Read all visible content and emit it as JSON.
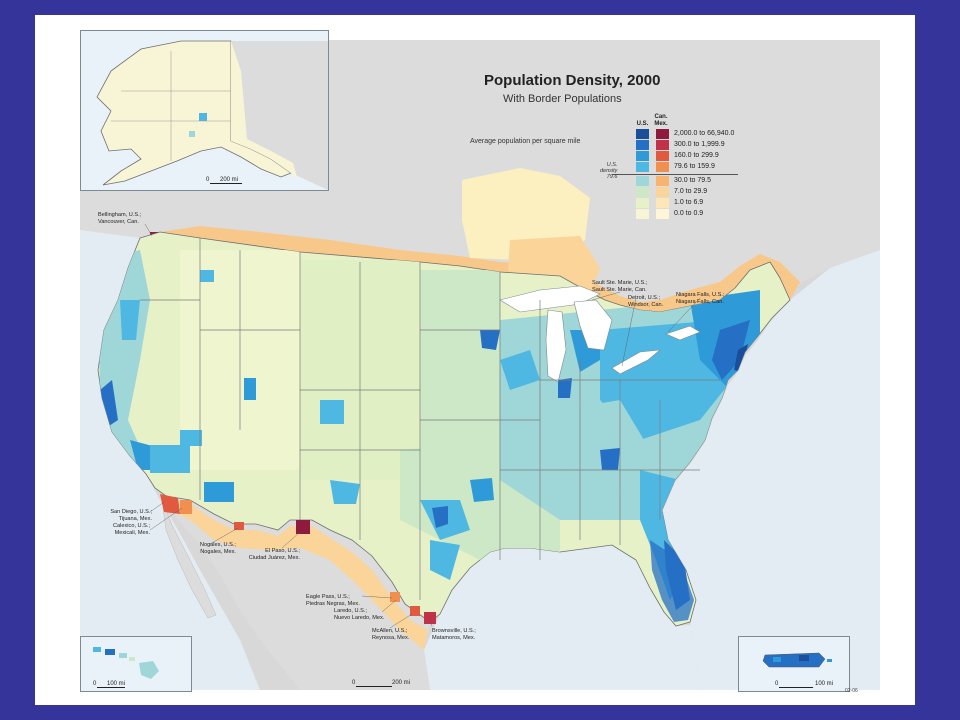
{
  "map": {
    "title": "Population Density, 2000",
    "subtitle": "With Border Populations",
    "legend": {
      "caption": "Average population per square mile",
      "us_header": "U.S.",
      "canmex_header_line1": "Can.",
      "canmex_header_line2": "Mex.",
      "us_density_line1": "U.S.",
      "us_density_line2": "density",
      "us_density_line3": "79.6",
      "classes": [
        {
          "label": "2,000.0 to 66,940.0",
          "us_color": "#1a4e9a",
          "canmex_color": "#8e1b3e"
        },
        {
          "label": "300.0 to 1,999.9",
          "us_color": "#2570c4",
          "canmex_color": "#c0314a"
        },
        {
          "label": "160.0 to 299.9",
          "us_color": "#2f9ad8",
          "canmex_color": "#e05a3f"
        },
        {
          "label": "79.6 to 159.9",
          "us_color": "#4fb8e2",
          "canmex_color": "#f08f50"
        },
        {
          "label": "30.0 to 79.5",
          "us_color": "#9fd6d8",
          "canmex_color": "#f7b470"
        },
        {
          "label": "7.0 to 29.9",
          "us_color": "#cde8c6",
          "canmex_color": "#fbd49a"
        },
        {
          "label": "1.0 to 6.9",
          "us_color": "#e6f1c8",
          "canmex_color": "#fde6b8"
        },
        {
          "label": "0.0 to 0.9",
          "us_color": "#f7f5d6",
          "canmex_color": "#fff6d8"
        }
      ]
    },
    "border_pairs": [
      {
        "line1": "Bellingham, U.S.;",
        "line2": "Vancouver, Can."
      },
      {
        "line1": "Sault Ste. Marie, U.S.;",
        "line2": "Sault Ste. Marie, Can."
      },
      {
        "line1": "Detroit, U.S.;",
        "line2": "Windsor, Can."
      },
      {
        "line1": "Niagara Falls, U.S.;",
        "line2": "Niagara Falls, Can."
      },
      {
        "line1": "San Diego, U.S.;",
        "line2": "Tijuana, Mex."
      },
      {
        "line1": "Calexico, U.S.;",
        "line2": "Mexicali, Mex."
      },
      {
        "line1": "Nogales, U.S.;",
        "line2": "Nogales, Mex."
      },
      {
        "line1": "El Paso, U.S.;",
        "line2": "Ciudad Juárez, Mex."
      },
      {
        "line1": "Eagle Pass, U.S.;",
        "line2": "Piedras Negras, Mex."
      },
      {
        "line1": "Laredo, U.S.;",
        "line2": "Nuevo Laredo, Mex."
      },
      {
        "line1": "McAllen, U.S.;",
        "line2": "Reynosa, Mex."
      },
      {
        "line1": "Brownsville, U.S.;",
        "line2": "Matamoros, Mex."
      }
    ],
    "scales": {
      "alaska": {
        "zero": "0",
        "label": "200 mi"
      },
      "hawaii": {
        "zero": "0",
        "label": "100 mi"
      },
      "main": {
        "zero": "0",
        "label": "200 mi"
      },
      "puerto_rico": {
        "zero": "0",
        "label": "100 mi"
      }
    },
    "plate_number": "02-06"
  }
}
